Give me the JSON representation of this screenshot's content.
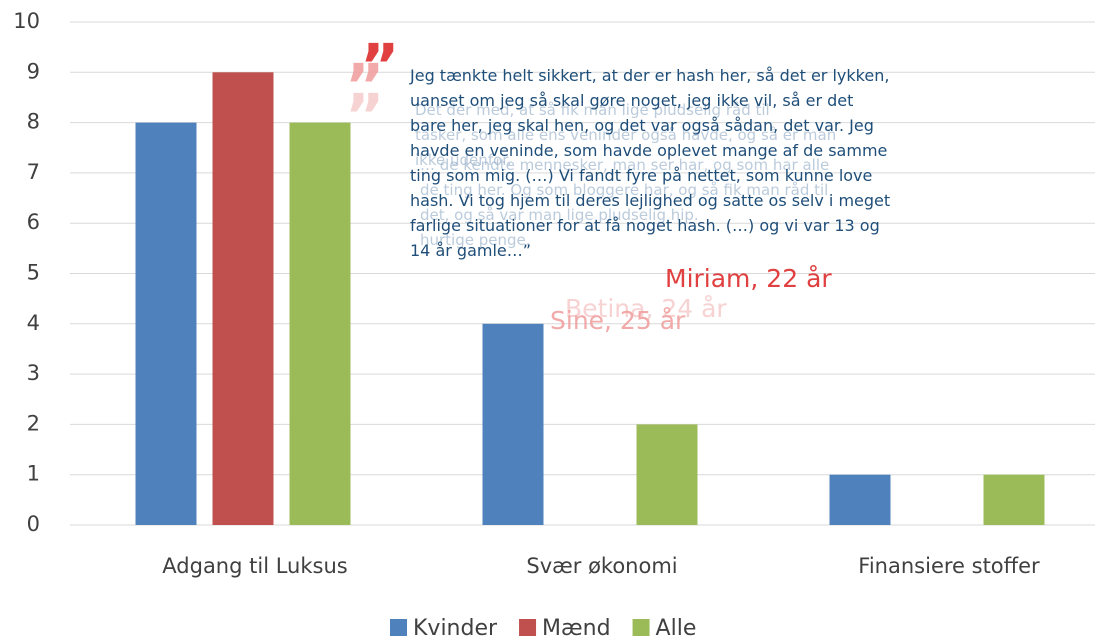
{
  "chart_data": {
    "type": "bar",
    "categories": [
      "Adgang til Luksus",
      "Svær økonomi",
      "Finansiere stoffer"
    ],
    "series": [
      {
        "name": "Kvinder",
        "color": "#4f81bd",
        "values": [
          8,
          4,
          1
        ]
      },
      {
        "name": "Mænd",
        "color": "#c0504d",
        "values": [
          9,
          0,
          0
        ]
      },
      {
        "name": "Alle",
        "color": "#9bbb59",
        "values": [
          8,
          2,
          1
        ]
      }
    ],
    "ylim": [
      0,
      10
    ],
    "yticks": [
      0,
      1,
      2,
      3,
      4,
      5,
      6,
      7,
      8,
      9,
      10
    ],
    "grid": true,
    "legend": "bottom",
    "quotes": [
      {
        "lines": [
          "Jeg tænkte helt sikkert, at der er hash her, så det er lykken,",
          "uanset om jeg så skal gøre noget, jeg ikke vil, så er det",
          "bare her, jeg skal hen, og det var også sådan, det var. Jeg",
          "havde en veninde, som havde oplevet mange af de samme",
          "ting som mig. (…) Vi fandt fyre på nettet, som kunne love",
          "hash. Vi tog hjem til deres lejlighed og satte os selv i meget",
          "farlige situationer for at få noget hash. (…) og vi var 13 og",
          "14 år gamle…”"
        ],
        "author": "Miriam, 22 år"
      },
      {
        "lines": [
          "Det der med, at så fik man lige pludselig råd til",
          "tasker, som alle ens veninder også havde, og så er man",
          "ikke udenfor."
        ],
        "author": "Sine, 25 år"
      },
      {
        "lines": [
          "… de kendte mennesker, man ser har, og som har alle",
          "de ting her. Og som bloggere har, og så fik man råd til",
          "det, og så var man lige pludselig hip.",
          "hurtige penge."
        ],
        "author": "Betina, 24 år"
      }
    ]
  }
}
